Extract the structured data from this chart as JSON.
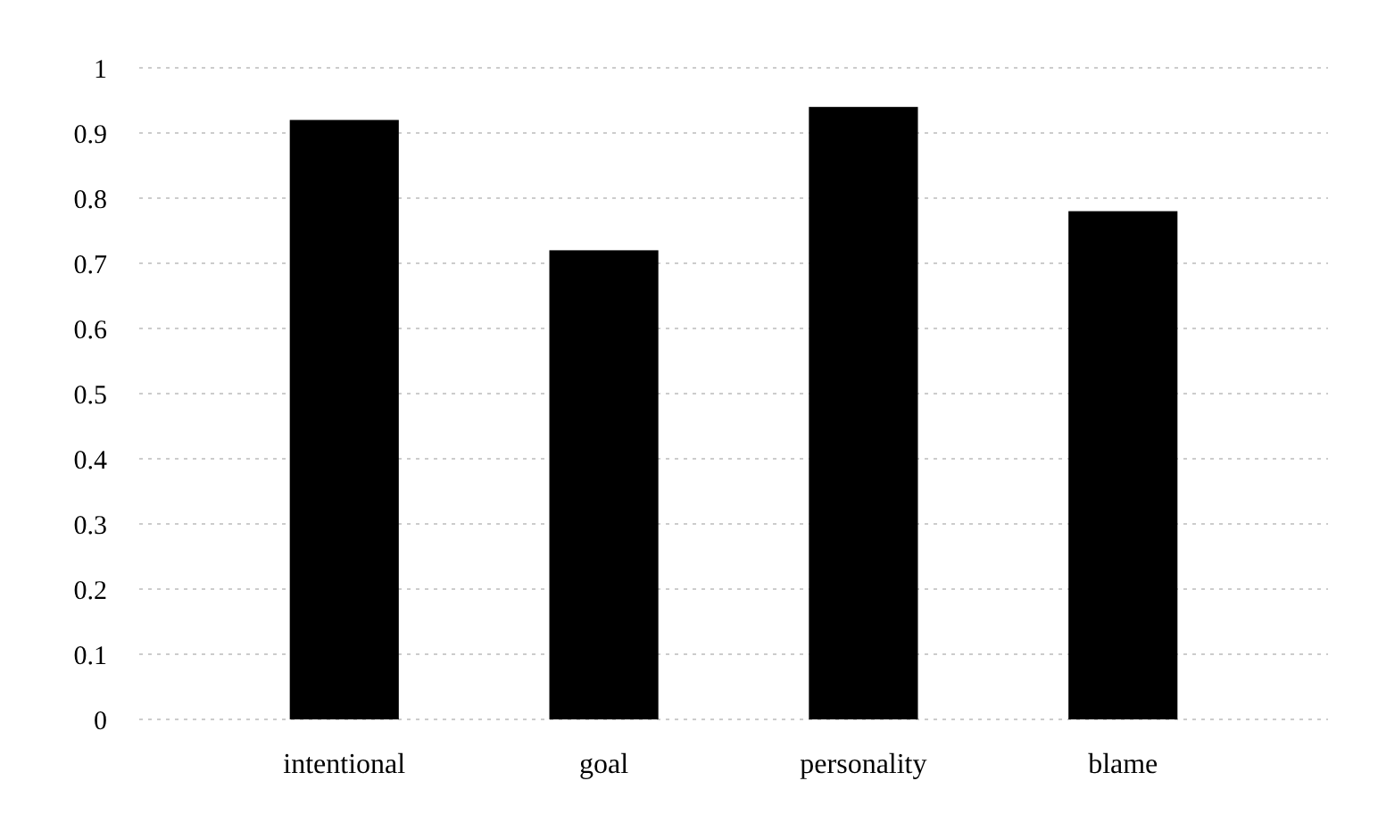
{
  "chart_data": {
    "type": "bar",
    "categories": [
      "intentional",
      "goal",
      "personality",
      "blame"
    ],
    "values": [
      0.92,
      0.72,
      0.94,
      0.78
    ],
    "color": "#000000",
    "ylim": [
      0,
      1
    ],
    "yticks": [
      0,
      0.1,
      0.2,
      0.3,
      0.4,
      0.5,
      0.6,
      0.7,
      0.8,
      0.9,
      1
    ],
    "grid": "y"
  }
}
